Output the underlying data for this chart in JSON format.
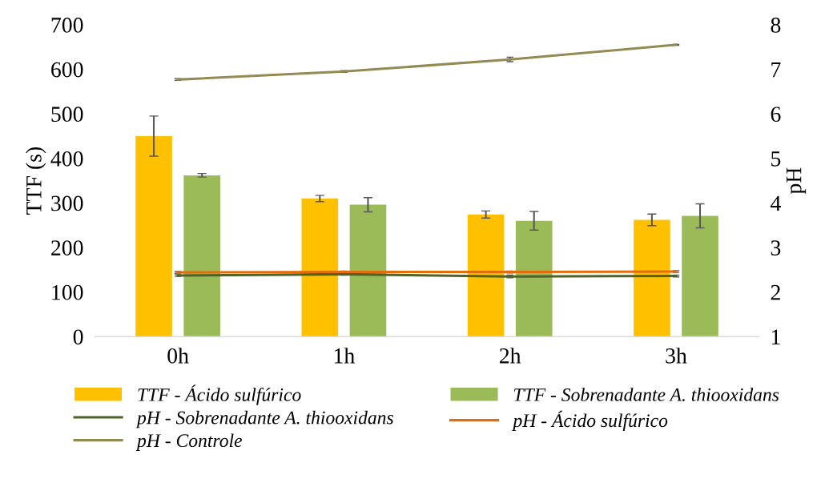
{
  "chart_data": {
    "type": "bar",
    "ylabel": "TTF (s)",
    "y2label": "pH",
    "categories": [
      "0h",
      "1h",
      "2h",
      "3h"
    ],
    "series": [
      {
        "name": "TTF - Ácido sulfúrico",
        "color": "#ffc000",
        "values": [
          450,
          310,
          274,
          262
        ],
        "errors": [
          45,
          7,
          8,
          13
        ]
      },
      {
        "name": "TTF - Sobrenadante A. thiooxidans",
        "color": "#9bbb59",
        "values": [
          362,
          296,
          260,
          271
        ],
        "errors": [
          4,
          16,
          21,
          27
        ]
      },
      {
        "name": "pH - Sobrenadante A. thiooxidans",
        "type": "line",
        "axis": "y2",
        "color": "#4f6228",
        "values": [
          2.37,
          2.4,
          2.35,
          2.36
        ],
        "errors": [
          0.02,
          0.02,
          0.03,
          0.02
        ]
      },
      {
        "name": "pH - Ácido sulfúrico",
        "type": "line",
        "axis": "y2",
        "color": "#e46c0a",
        "values": [
          2.44,
          2.45,
          2.45,
          2.46
        ],
        "errors": [
          0.02,
          0.02,
          0.02,
          0.02
        ]
      },
      {
        "name": "pH - Controle",
        "type": "line",
        "axis": "y2",
        "color": "#948a54",
        "values": [
          6.77,
          6.95,
          7.22,
          7.55
        ],
        "errors": [
          0.02,
          0.02,
          0.05,
          0.01
        ]
      }
    ],
    "ylim": [
      0,
      700
    ],
    "yticks": [
      0,
      100,
      200,
      300,
      400,
      500,
      600,
      700
    ],
    "y2lim": [
      1,
      8
    ],
    "y2ticks": [
      1,
      2,
      3,
      4,
      5,
      6,
      7,
      8
    ],
    "grid": false,
    "legend": "bottom"
  }
}
